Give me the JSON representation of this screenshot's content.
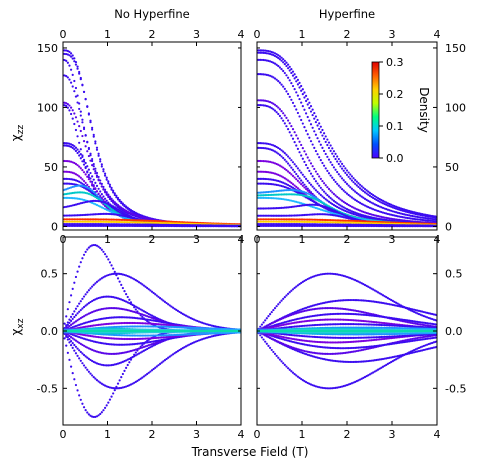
{
  "chart_data": {
    "type": "scatter",
    "xlabel": "Transverse Field (T)",
    "panels": [
      {
        "id": "tl",
        "title": "No Hyperfine",
        "ylabel": "χzz",
        "xlim": [
          0,
          4
        ],
        "ylim": [
          -3,
          155
        ],
        "xticks": [
          "0",
          "1",
          "2",
          "3",
          "4"
        ],
        "yticks": [
          {
            "v": 0,
            "t": "0"
          },
          {
            "v": 50,
            "t": "50"
          },
          {
            "v": 100,
            "t": "100"
          },
          {
            "v": 150,
            "t": "150"
          }
        ],
        "curves": [
          {
            "a": 148,
            "c": 0.7,
            "w": 1.3,
            "f": 3.0,
            "hx": 0.0,
            "hh": 0,
            "hw": 0.3,
            "col": "#3b0cf0"
          },
          {
            "a": 145,
            "c": 0.72,
            "w": 1.25,
            "f": 3.0,
            "hx": 0.0,
            "hh": 0,
            "hw": 0.3,
            "col": "#3b0cf0"
          },
          {
            "a": 140,
            "c": 0.55,
            "w": 0.9,
            "f": 2.5,
            "hx": 0.0,
            "hh": 0,
            "hw": 0.3,
            "col": "#3b0cf0"
          },
          {
            "a": 127,
            "c": 0.6,
            "w": 0.9,
            "f": 2.5,
            "hx": 0.0,
            "hh": 0,
            "hw": 0.3,
            "col": "#3b0cf0"
          },
          {
            "a": 104,
            "c": 0.65,
            "w": 0.85,
            "f": 2.5,
            "hx": 0.0,
            "hh": 0,
            "hw": 0.3,
            "col": "#5a06e8"
          },
          {
            "a": 102,
            "c": 0.5,
            "w": 0.8,
            "f": 2.5,
            "hx": 0.0,
            "hh": 0,
            "hw": 0.3,
            "col": "#3b0cf0"
          },
          {
            "a": 70,
            "c": 0.75,
            "w": 1.1,
            "f": 3.0,
            "hx": 0.0,
            "hh": 0,
            "hw": 0.3,
            "col": "#3b0cf0"
          },
          {
            "a": 68,
            "c": 0.7,
            "w": 1.0,
            "f": 3.0,
            "hx": 0.0,
            "hh": 0,
            "hw": 0.3,
            "col": "#3b0cf0"
          },
          {
            "a": 55,
            "c": 0.8,
            "w": 1.0,
            "f": 3.0,
            "hx": 0.0,
            "hh": 0,
            "hw": 0.3,
            "col": "#7a00e0"
          },
          {
            "a": 46,
            "c": 0.8,
            "w": 1.0,
            "f": 3.0,
            "hx": 0.0,
            "hh": 0,
            "hw": 0.3,
            "col": "#7a00e0"
          },
          {
            "a": 40,
            "c": 0.9,
            "w": 1.0,
            "f": 3.0,
            "hx": 0.0,
            "hh": 0,
            "hw": 0.3,
            "col": "#3b0cf0"
          },
          {
            "a": 36,
            "c": 1.0,
            "w": 1.1,
            "f": 3.0,
            "hx": 0.0,
            "hh": 0,
            "hw": 0.3,
            "col": "#3b0cf0"
          },
          {
            "a": 28,
            "c": 0.9,
            "w": 1.1,
            "f": 3.0,
            "hx": 0.6,
            "hh": 10,
            "hw": 0.5,
            "col": "#1e90ff"
          },
          {
            "a": 26,
            "c": 1.0,
            "w": 1.2,
            "f": 3.0,
            "hx": 0.7,
            "hh": 6,
            "hw": 0.5,
            "col": "#00c8c8"
          },
          {
            "a": 24,
            "c": 1.1,
            "w": 1.2,
            "f": 3.0,
            "hx": 0.0,
            "hh": 0,
            "hw": 0.3,
            "col": "#20b8ff"
          },
          {
            "a": 15,
            "c": 1.2,
            "w": 1.2,
            "f": 3.0,
            "hx": 0.9,
            "hh": 10,
            "hw": 0.6,
            "col": "#3b0cf0"
          },
          {
            "a": 9,
            "c": 1.5,
            "w": 1.3,
            "f": 3.0,
            "hx": 1.2,
            "hh": 4,
            "hw": 0.6,
            "col": "#3b0cf0"
          },
          {
            "a": 6,
            "c": 3.0,
            "w": 2.0,
            "f": 3.0,
            "hx": 0.0,
            "hh": 0,
            "hw": 0.3,
            "col": "#ff3000"
          },
          {
            "a": 4,
            "c": 3.0,
            "w": 2.0,
            "f": 3.0,
            "hx": 0.0,
            "hh": 0,
            "hw": 0.3,
            "col": "#ffd000"
          },
          {
            "a": 2,
            "c": 3.0,
            "w": 2.0,
            "f": 2.5,
            "hx": 0.0,
            "hh": 0,
            "hw": 0.3,
            "col": "#3b0cf0"
          },
          {
            "a": 0.5,
            "c": 3.0,
            "w": 2.0,
            "f": 2.5,
            "hx": 0.0,
            "hh": 0,
            "hw": 0.3,
            "col": "#3b0cf0"
          }
        ]
      },
      {
        "id": "tr",
        "title": "Hyperfine",
        "ylabel": "",
        "xlim": [
          0,
          4
        ],
        "ylim": [
          -3,
          155
        ],
        "xticks": [
          "0",
          "1",
          "2",
          "3",
          "4"
        ],
        "yticks": [
          {
            "v": 0,
            "t": "0"
          },
          {
            "v": 50,
            "t": "50"
          },
          {
            "v": 100,
            "t": "100"
          },
          {
            "v": 150,
            "t": "150"
          }
        ],
        "curves": [
          {
            "a": 148,
            "c": 1.55,
            "w": 1.1,
            "f": 3.0,
            "hx": 0.0,
            "hh": 0,
            "hw": 0.3,
            "col": "#3b0cf0"
          },
          {
            "a": 146,
            "c": 1.5,
            "w": 1.05,
            "f": 3.0,
            "hx": 0.0,
            "hh": 0,
            "hw": 0.3,
            "col": "#3b0cf0"
          },
          {
            "a": 140,
            "c": 1.4,
            "w": 1.0,
            "f": 3.0,
            "hx": 0.0,
            "hh": 0,
            "hw": 0.3,
            "col": "#3b0cf0"
          },
          {
            "a": 128,
            "c": 1.3,
            "w": 1.0,
            "f": 3.0,
            "hx": 0.0,
            "hh": 0,
            "hw": 0.3,
            "col": "#3b0cf0"
          },
          {
            "a": 106,
            "c": 1.2,
            "w": 0.9,
            "f": 3.0,
            "hx": 0.0,
            "hh": 0,
            "hw": 0.3,
            "col": "#5a06e8"
          },
          {
            "a": 102,
            "c": 1.1,
            "w": 0.9,
            "f": 3.0,
            "hx": 0.0,
            "hh": 0,
            "hw": 0.3,
            "col": "#3b0cf0"
          },
          {
            "a": 70,
            "c": 1.2,
            "w": 1.0,
            "f": 3.0,
            "hx": 0.0,
            "hh": 0,
            "hw": 0.3,
            "col": "#3b0cf0"
          },
          {
            "a": 66,
            "c": 1.1,
            "w": 1.0,
            "f": 3.0,
            "hx": 0.0,
            "hh": 0,
            "hw": 0.3,
            "col": "#3b0cf0"
          },
          {
            "a": 55,
            "c": 1.2,
            "w": 1.0,
            "f": 3.0,
            "hx": 0.0,
            "hh": 0,
            "hw": 0.3,
            "col": "#7a00e0"
          },
          {
            "a": 46,
            "c": 1.2,
            "w": 1.0,
            "f": 3.0,
            "hx": 0.0,
            "hh": 0,
            "hw": 0.3,
            "col": "#7a00e0"
          },
          {
            "a": 40,
            "c": 1.3,
            "w": 1.1,
            "f": 3.0,
            "hx": 0.0,
            "hh": 0,
            "hw": 0.3,
            "col": "#3b0cf0"
          },
          {
            "a": 36,
            "c": 1.4,
            "w": 1.1,
            "f": 3.0,
            "hx": 0.0,
            "hh": 0,
            "hw": 0.3,
            "col": "#3b0cf0"
          },
          {
            "a": 28,
            "c": 1.5,
            "w": 1.2,
            "f": 3.0,
            "hx": 1.1,
            "hh": 8,
            "hw": 0.6,
            "col": "#1e90ff"
          },
          {
            "a": 26,
            "c": 1.6,
            "w": 1.2,
            "f": 3.0,
            "hx": 1.2,
            "hh": 6,
            "hw": 0.6,
            "col": "#00c8c8"
          },
          {
            "a": 24,
            "c": 1.6,
            "w": 1.2,
            "f": 3.0,
            "hx": 0.0,
            "hh": 0,
            "hw": 0.3,
            "col": "#20b8ff"
          },
          {
            "a": 15,
            "c": 1.7,
            "w": 1.2,
            "f": 3.0,
            "hx": 1.4,
            "hh": 8,
            "hw": 0.6,
            "col": "#3b0cf0"
          },
          {
            "a": 9,
            "c": 2.0,
            "w": 1.3,
            "f": 3.0,
            "hx": 1.6,
            "hh": 4,
            "hw": 0.6,
            "col": "#3b0cf0"
          },
          {
            "a": 6,
            "c": 3.2,
            "w": 2.0,
            "f": 3.0,
            "hx": 0.0,
            "hh": 0,
            "hw": 0.3,
            "col": "#ff3000"
          },
          {
            "a": 4,
            "c": 3.2,
            "w": 2.0,
            "f": 3.0,
            "hx": 0.0,
            "hh": 0,
            "hw": 0.3,
            "col": "#ffd000"
          },
          {
            "a": 2,
            "c": 3.2,
            "w": 2.0,
            "f": 2.5,
            "hx": 0.0,
            "hh": 0,
            "hw": 0.3,
            "col": "#3b0cf0"
          },
          {
            "a": 0.5,
            "c": 3.2,
            "w": 2.0,
            "f": 2.5,
            "hx": 0.0,
            "hh": 0,
            "hw": 0.3,
            "col": "#3b0cf0"
          }
        ]
      },
      {
        "id": "bl",
        "title": "",
        "ylabel": "χxz",
        "xlim": [
          0,
          4
        ],
        "ylim": [
          -0.82,
          0.82
        ],
        "xticks": [
          "0",
          "1",
          "2",
          "3",
          "4"
        ],
        "yticks": [
          {
            "v": -0.5,
            "t": "-0.5"
          },
          {
            "v": 0,
            "t": "0.0"
          },
          {
            "v": 0.5,
            "t": "0.5"
          }
        ],
        "curves": [
          {
            "a": 0.75,
            "p": 0.7,
            "w": 0.3,
            "col": "#3b0cf0"
          },
          {
            "a": -0.75,
            "p": 0.7,
            "w": 0.3,
            "col": "#3b0cf0"
          },
          {
            "a": 0.5,
            "p": 1.2,
            "w": 1.1,
            "col": "#3b0cf0"
          },
          {
            "a": -0.5,
            "p": 1.2,
            "w": 1.1,
            "col": "#3b0cf0"
          },
          {
            "a": 0.3,
            "p": 1.0,
            "w": 0.9,
            "col": "#3b0cf0"
          },
          {
            "a": -0.3,
            "p": 1.0,
            "w": 0.9,
            "col": "#3b0cf0"
          },
          {
            "a": 0.2,
            "p": 1.1,
            "w": 1.2,
            "col": "#5a06e8"
          },
          {
            "a": -0.2,
            "p": 1.1,
            "w": 1.2,
            "col": "#5a06e8"
          },
          {
            "a": 0.12,
            "p": 1.3,
            "w": 1.2,
            "col": "#3b0cf0"
          },
          {
            "a": -0.12,
            "p": 1.3,
            "w": 1.2,
            "col": "#3b0cf0"
          },
          {
            "a": 0.07,
            "p": 1.5,
            "w": 1.3,
            "col": "#7a00e0"
          },
          {
            "a": -0.07,
            "p": 1.5,
            "w": 1.3,
            "col": "#7a00e0"
          },
          {
            "a": 0.04,
            "p": 1.8,
            "w": 1.5,
            "col": "#1e90ff"
          },
          {
            "a": -0.04,
            "p": 1.8,
            "w": 1.5,
            "col": "#1e90ff"
          },
          {
            "a": 0.02,
            "p": 1.0,
            "w": 1.5,
            "col": "#00c8c8"
          },
          {
            "a": -0.02,
            "p": 1.0,
            "w": 1.5,
            "col": "#00c8c8"
          },
          {
            "a": 0.01,
            "p": 1.5,
            "w": 2.0,
            "col": "#2ee6a0"
          },
          {
            "a": -0.01,
            "p": 1.5,
            "w": 2.0,
            "col": "#2ee6a0"
          }
        ]
      },
      {
        "id": "br",
        "title": "",
        "ylabel": "",
        "xlim": [
          0,
          4
        ],
        "ylim": [
          -0.82,
          0.82
        ],
        "xticks": [
          "0",
          "1",
          "2",
          "3",
          "4"
        ],
        "yticks": [
          {
            "v": -0.5,
            "t": "-0.5"
          },
          {
            "v": 0,
            "t": "0.0"
          },
          {
            "v": 0.5,
            "t": "0.5"
          }
        ],
        "curves": [
          {
            "a": 0.5,
            "p": 1.6,
            "w": 0.45,
            "col": "#3b0cf0"
          },
          {
            "a": -0.5,
            "p": 1.6,
            "w": 0.45,
            "col": "#3b0cf0"
          },
          {
            "a": 0.27,
            "p": 2.1,
            "w": 1.0,
            "col": "#3b0cf0"
          },
          {
            "a": -0.27,
            "p": 2.1,
            "w": 1.0,
            "col": "#3b0cf0"
          },
          {
            "a": 0.2,
            "p": 1.6,
            "w": 0.6,
            "col": "#5a06e8"
          },
          {
            "a": -0.2,
            "p": 1.6,
            "w": 0.6,
            "col": "#5a06e8"
          },
          {
            "a": 0.15,
            "p": 1.9,
            "w": 0.9,
            "col": "#3b0cf0"
          },
          {
            "a": -0.15,
            "p": 1.9,
            "w": 0.9,
            "col": "#3b0cf0"
          },
          {
            "a": 0.1,
            "p": 1.7,
            "w": 0.8,
            "col": "#7a00e0"
          },
          {
            "a": -0.1,
            "p": 1.7,
            "w": 0.8,
            "col": "#7a00e0"
          },
          {
            "a": 0.06,
            "p": 2.0,
            "w": 1.0,
            "col": "#3b0cf0"
          },
          {
            "a": -0.06,
            "p": 2.0,
            "w": 1.0,
            "col": "#3b0cf0"
          },
          {
            "a": 0.03,
            "p": 2.2,
            "w": 1.2,
            "col": "#1e90ff"
          },
          {
            "a": -0.03,
            "p": 2.2,
            "w": 1.2,
            "col": "#1e90ff"
          },
          {
            "a": 0.02,
            "p": 1.5,
            "w": 1.5,
            "col": "#00c8c8"
          },
          {
            "a": -0.02,
            "p": 1.5,
            "w": 1.5,
            "col": "#00c8c8"
          },
          {
            "a": 0.01,
            "p": 1.8,
            "w": 2.0,
            "col": "#2ee6a0"
          },
          {
            "a": -0.01,
            "p": 1.8,
            "w": 2.0,
            "col": "#2ee6a0"
          }
        ]
      }
    ],
    "colorbar": {
      "label": "Density",
      "range": [
        0,
        0.3
      ],
      "ticks": [
        {
          "v": 0.3,
          "t": "0.3"
        },
        {
          "v": 0.2,
          "t": "0.2"
        },
        {
          "v": 0.1,
          "t": "0.1"
        },
        {
          "v": 0,
          "t": "0.0"
        }
      ],
      "colors": [
        "#4b00ff",
        "#0050ff",
        "#00c8ff",
        "#00ff80",
        "#c0ff00",
        "#ffd000",
        "#ff6000",
        "#e00000"
      ]
    }
  }
}
